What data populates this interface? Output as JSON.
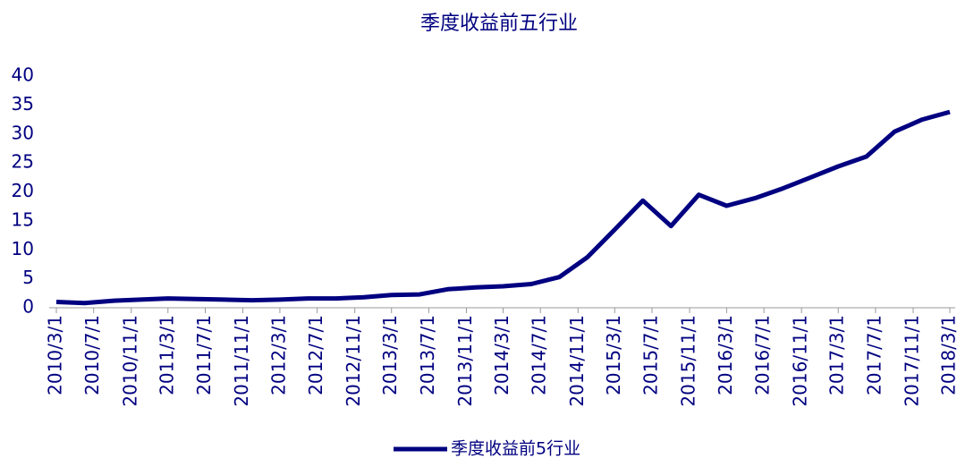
{
  "chart_data": {
    "type": "line",
    "title": "季度收益前五行业",
    "x": [
      "2010/3/1",
      "2010/6/1",
      "2010/9/1",
      "2010/12/1",
      "2011/3/1",
      "2011/6/1",
      "2011/9/1",
      "2011/12/1",
      "2012/3/1",
      "2012/6/1",
      "2012/9/1",
      "2012/12/1",
      "2013/3/1",
      "2013/6/1",
      "2013/9/1",
      "2013/12/1",
      "2014/3/1",
      "2014/6/1",
      "2014/9/1",
      "2014/12/1",
      "2015/3/1",
      "2015/6/1",
      "2015/9/1",
      "2015/12/1",
      "2016/3/1",
      "2016/6/1",
      "2016/9/1",
      "2016/12/1",
      "2017/3/1",
      "2017/6/1",
      "2017/9/1",
      "2017/12/1",
      "2018/3/1"
    ],
    "series": [
      {
        "name": "季度收益前5行业",
        "color": "#000080",
        "values": [
          1.0,
          0.8,
          1.2,
          1.4,
          1.6,
          1.5,
          1.4,
          1.3,
          1.4,
          1.6,
          1.6,
          1.8,
          2.2,
          2.3,
          3.2,
          3.5,
          3.7,
          4.1,
          5.3,
          8.7,
          13.5,
          18.5,
          14.1,
          19.5,
          17.6,
          18.9,
          20.6,
          22.5,
          24.4,
          26.1,
          30.4,
          32.5,
          33.8
        ]
      }
    ],
    "xlim": [
      "2010/3/1",
      "2018/3/1"
    ],
    "xticks": [
      "2010/3/1",
      "2010/7/1",
      "2010/11/1",
      "2011/3/1",
      "2011/7/1",
      "2011/11/1",
      "2012/3/1",
      "2012/7/1",
      "2012/11/1",
      "2013/3/1",
      "2013/7/1",
      "2013/11/1",
      "2014/3/1",
      "2014/7/1",
      "2014/11/1",
      "2015/3/1",
      "2015/7/1",
      "2015/11/1",
      "2016/3/1",
      "2016/7/1",
      "2016/11/1",
      "2017/3/1",
      "2017/7/1",
      "2017/11/1",
      "2018/3/1"
    ],
    "ylim": [
      0,
      40
    ],
    "yticks": [
      0,
      5,
      10,
      15,
      20,
      25,
      30,
      35,
      40
    ],
    "grid": false,
    "legend": "bottom"
  }
}
